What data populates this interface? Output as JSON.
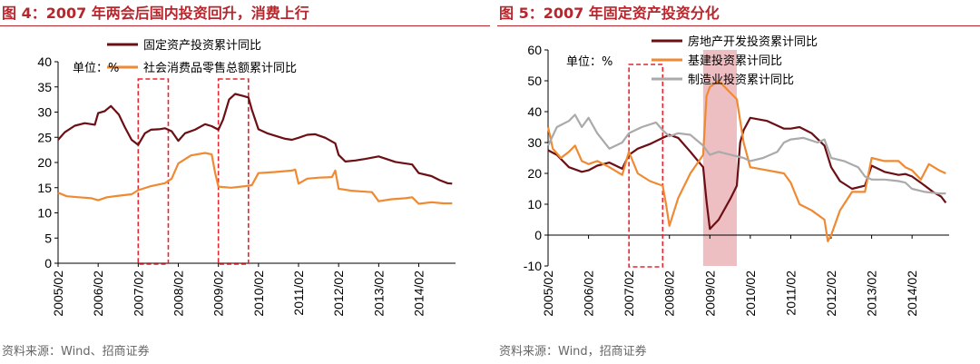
{
  "chart_data": [
    {
      "type": "line",
      "title": "图 4：2007 年两会后国内投资回升，消费上行",
      "source": "资料来源：Wind、招商证券",
      "unit_label": "单位：%",
      "ylim": [
        0,
        40
      ],
      "yticks": [
        "0",
        "5",
        "10",
        "15",
        "20",
        "25",
        "30",
        "35",
        "40"
      ],
      "x_range": [
        2005.083,
        2015.0
      ],
      "xtick_labels": [
        "2005/02",
        "2006/02",
        "2007/02",
        "2008/02",
        "2009/02",
        "2010/02",
        "2011/02",
        "2012/02",
        "2013/02",
        "2014/02"
      ],
      "legend_position": "top",
      "highlight_boxes": [
        [
          2007.083,
          2007.833
        ],
        [
          2009.083,
          2009.833
        ]
      ],
      "series": [
        {
          "name": "固定资产投资累计同比",
          "color": "#6b0f14",
          "points": [
            [
              2005.083,
              24.5
            ],
            [
              2005.25,
              26
            ],
            [
              2005.5,
              27.3
            ],
            [
              2005.75,
              27.8
            ],
            [
              2006.0,
              27.5
            ],
            [
              2006.083,
              29.8
            ],
            [
              2006.25,
              30.2
            ],
            [
              2006.4,
              31.2
            ],
            [
              2006.6,
              29.5
            ],
            [
              2006.75,
              27
            ],
            [
              2006.917,
              24.5
            ],
            [
              2007.083,
              23.5
            ],
            [
              2007.25,
              25.8
            ],
            [
              2007.4,
              26.5
            ],
            [
              2007.6,
              26.6
            ],
            [
              2007.75,
              26.8
            ],
            [
              2007.917,
              26.2
            ],
            [
              2008.083,
              24.3
            ],
            [
              2008.25,
              25.8
            ],
            [
              2008.5,
              26.5
            ],
            [
              2008.75,
              27.6
            ],
            [
              2008.917,
              27.2
            ],
            [
              2009.083,
              26.5
            ],
            [
              2009.2,
              28.5
            ],
            [
              2009.35,
              32.5
            ],
            [
              2009.5,
              33.6
            ],
            [
              2009.7,
              33.2
            ],
            [
              2009.833,
              32.9
            ],
            [
              2009.917,
              30.5
            ],
            [
              2010.083,
              26.6
            ],
            [
              2010.3,
              25.8
            ],
            [
              2010.5,
              25.3
            ],
            [
              2010.75,
              24.7
            ],
            [
              2010.917,
              24.5
            ],
            [
              2011.083,
              24.9
            ],
            [
              2011.3,
              25.5
            ],
            [
              2011.5,
              25.6
            ],
            [
              2011.75,
              24.9
            ],
            [
              2012.0,
              23.8
            ],
            [
              2012.083,
              21.5
            ],
            [
              2012.25,
              20.2
            ],
            [
              2012.5,
              20.4
            ],
            [
              2012.75,
              20.7
            ],
            [
              2013.083,
              21.2
            ],
            [
              2013.5,
              20.1
            ],
            [
              2013.917,
              19.6
            ],
            [
              2014.083,
              17.9
            ],
            [
              2014.4,
              17.3
            ],
            [
              2014.6,
              16.5
            ],
            [
              2014.8,
              15.9
            ],
            [
              2014.917,
              15.8
            ]
          ]
        },
        {
          "name": "社会消费品零售总额累计同比",
          "color": "#ef8a33",
          "points": [
            [
              2005.083,
              14
            ],
            [
              2005.3,
              13.3
            ],
            [
              2005.6,
              13.1
            ],
            [
              2005.917,
              12.9
            ],
            [
              2006.083,
              12.5
            ],
            [
              2006.3,
              13.1
            ],
            [
              2006.6,
              13.4
            ],
            [
              2006.917,
              13.7
            ],
            [
              2007.083,
              14.5
            ],
            [
              2007.4,
              15.3
            ],
            [
              2007.75,
              15.9
            ],
            [
              2007.917,
              16.8
            ],
            [
              2008.083,
              19.8
            ],
            [
              2008.4,
              21.4
            ],
            [
              2008.75,
              21.9
            ],
            [
              2008.917,
              21.6
            ],
            [
              2009.0,
              18
            ],
            [
              2009.083,
              15.2
            ],
            [
              2009.4,
              15
            ],
            [
              2009.75,
              15.3
            ],
            [
              2009.917,
              15.5
            ],
            [
              2010.083,
              17.9
            ],
            [
              2010.5,
              18.1
            ],
            [
              2010.917,
              18.4
            ],
            [
              2011.0,
              18.6
            ],
            [
              2011.083,
              15.8
            ],
            [
              2011.3,
              16.8
            ],
            [
              2011.6,
              17
            ],
            [
              2011.917,
              17.1
            ],
            [
              2012.0,
              18.4
            ],
            [
              2012.083,
              14.8
            ],
            [
              2012.4,
              14.4
            ],
            [
              2012.75,
              14.2
            ],
            [
              2012.917,
              14.1
            ],
            [
              2013.083,
              12.3
            ],
            [
              2013.4,
              12.7
            ],
            [
              2013.75,
              12.9
            ],
            [
              2013.917,
              13.1
            ],
            [
              2014.083,
              11.8
            ],
            [
              2014.4,
              12.1
            ],
            [
              2014.7,
              11.9
            ],
            [
              2014.917,
              11.9
            ]
          ]
        }
      ]
    },
    {
      "type": "line",
      "title": "图 5：2007 年固定资产投资分化",
      "source": "资料来源：Wind，招商证券",
      "unit_label": "单位：%",
      "ylim": [
        -10,
        60
      ],
      "yticks": [
        "-10",
        "0",
        "10",
        "20",
        "30",
        "40",
        "50",
        "60"
      ],
      "x_range": [
        2005.083,
        2015.0
      ],
      "xtick_labels": [
        "2005/02",
        "2006/02",
        "2007/02",
        "2008/02",
        "2009/02",
        "2010/02",
        "2011/02",
        "2012/02",
        "2013/02",
        "2014/02"
      ],
      "legend_position": "top-left",
      "highlight_boxes": [
        [
          2007.083,
          2007.917
        ]
      ],
      "shaded_band": [
        2008.917,
        2009.75
      ],
      "series": [
        {
          "name": "房地产开发投资累计同比",
          "color": "#6b0f14",
          "points": [
            [
              2005.083,
              27.5
            ],
            [
              2005.3,
              26
            ],
            [
              2005.6,
              22
            ],
            [
              2005.917,
              20.5
            ],
            [
              2006.083,
              21
            ],
            [
              2006.3,
              22.5
            ],
            [
              2006.6,
              23.5
            ],
            [
              2006.917,
              21.5
            ],
            [
              2007.083,
              26
            ],
            [
              2007.3,
              28
            ],
            [
              2007.6,
              29.5
            ],
            [
              2007.917,
              31.5
            ],
            [
              2008.083,
              32.5
            ],
            [
              2008.3,
              31.5
            ],
            [
              2008.6,
              27
            ],
            [
              2008.917,
              22
            ],
            [
              2009.0,
              11
            ],
            [
              2009.083,
              2
            ],
            [
              2009.3,
              5
            ],
            [
              2009.6,
              12
            ],
            [
              2009.75,
              16
            ],
            [
              2009.833,
              30
            ],
            [
              2009.917,
              34
            ],
            [
              2010.083,
              38
            ],
            [
              2010.5,
              37
            ],
            [
              2010.917,
              34.5
            ],
            [
              2011.083,
              34.5
            ],
            [
              2011.3,
              35
            ],
            [
              2011.6,
              33
            ],
            [
              2011.917,
              29
            ],
            [
              2012.083,
              22
            ],
            [
              2012.3,
              17.5
            ],
            [
              2012.6,
              15
            ],
            [
              2012.917,
              16
            ],
            [
              2013.083,
              22.5
            ],
            [
              2013.4,
              20.5
            ],
            [
              2013.75,
              19.5
            ],
            [
              2013.917,
              19.8
            ],
            [
              2014.083,
              19
            ],
            [
              2014.4,
              16
            ],
            [
              2014.6,
              14
            ],
            [
              2014.8,
              12.5
            ],
            [
              2014.917,
              10.5
            ]
          ]
        },
        {
          "name": "基建投资累计同比",
          "color": "#ef8a33",
          "points": [
            [
              2005.083,
              35
            ],
            [
              2005.2,
              28
            ],
            [
              2005.4,
              25
            ],
            [
              2005.6,
              27
            ],
            [
              2005.75,
              29
            ],
            [
              2005.917,
              24
            ],
            [
              2006.083,
              23
            ],
            [
              2006.3,
              24
            ],
            [
              2006.6,
              22
            ],
            [
              2006.917,
              19.5
            ],
            [
              2007.083,
              27
            ],
            [
              2007.3,
              20
            ],
            [
              2007.6,
              17.5
            ],
            [
              2007.917,
              16
            ],
            [
              2008.0,
              10
            ],
            [
              2008.083,
              3
            ],
            [
              2008.3,
              12
            ],
            [
              2008.6,
              20
            ],
            [
              2008.917,
              26
            ],
            [
              2009.0,
              45
            ],
            [
              2009.083,
              48
            ],
            [
              2009.3,
              50
            ],
            [
              2009.6,
              46
            ],
            [
              2009.75,
              44
            ],
            [
              2009.917,
              30
            ],
            [
              2010.083,
              22
            ],
            [
              2010.5,
              21
            ],
            [
              2010.917,
              20
            ],
            [
              2011.083,
              17
            ],
            [
              2011.3,
              10
            ],
            [
              2011.6,
              8
            ],
            [
              2011.917,
              5
            ],
            [
              2012.0,
              -2
            ],
            [
              2012.083,
              0
            ],
            [
              2012.3,
              8
            ],
            [
              2012.6,
              14
            ],
            [
              2012.917,
              14
            ],
            [
              2013.083,
              25
            ],
            [
              2013.4,
              24
            ],
            [
              2013.75,
              24
            ],
            [
              2013.917,
              22
            ],
            [
              2014.083,
              21
            ],
            [
              2014.3,
              18
            ],
            [
              2014.5,
              23
            ],
            [
              2014.75,
              21
            ],
            [
              2014.917,
              20
            ]
          ]
        },
        {
          "name": "制造业投资累计同比",
          "color": "#aaaaaa",
          "points": [
            [
              2005.083,
              29
            ],
            [
              2005.3,
              35
            ],
            [
              2005.6,
              37
            ],
            [
              2005.75,
              39
            ],
            [
              2005.917,
              35
            ],
            [
              2006.083,
              38
            ],
            [
              2006.3,
              33
            ],
            [
              2006.6,
              28
            ],
            [
              2006.917,
              30
            ],
            [
              2007.083,
              33
            ],
            [
              2007.4,
              35
            ],
            [
              2007.75,
              36.5
            ],
            [
              2007.917,
              34
            ],
            [
              2008.083,
              32
            ],
            [
              2008.3,
              33
            ],
            [
              2008.6,
              32.5
            ],
            [
              2008.917,
              29
            ],
            [
              2009.083,
              26
            ],
            [
              2009.3,
              27
            ],
            [
              2009.6,
              26
            ],
            [
              2009.917,
              25
            ],
            [
              2010.083,
              24
            ],
            [
              2010.4,
              25
            ],
            [
              2010.75,
              27
            ],
            [
              2010.917,
              30
            ],
            [
              2011.083,
              31
            ],
            [
              2011.4,
              31.5
            ],
            [
              2011.75,
              30
            ],
            [
              2011.917,
              31
            ],
            [
              2012.083,
              25
            ],
            [
              2012.4,
              24
            ],
            [
              2012.75,
              22
            ],
            [
              2012.917,
              19
            ],
            [
              2013.083,
              18
            ],
            [
              2013.4,
              18
            ],
            [
              2013.75,
              17.5
            ],
            [
              2013.917,
              17
            ],
            [
              2014.083,
              15
            ],
            [
              2014.4,
              14
            ],
            [
              2014.75,
              13.5
            ],
            [
              2014.917,
              13.5
            ]
          ]
        }
      ]
    }
  ]
}
